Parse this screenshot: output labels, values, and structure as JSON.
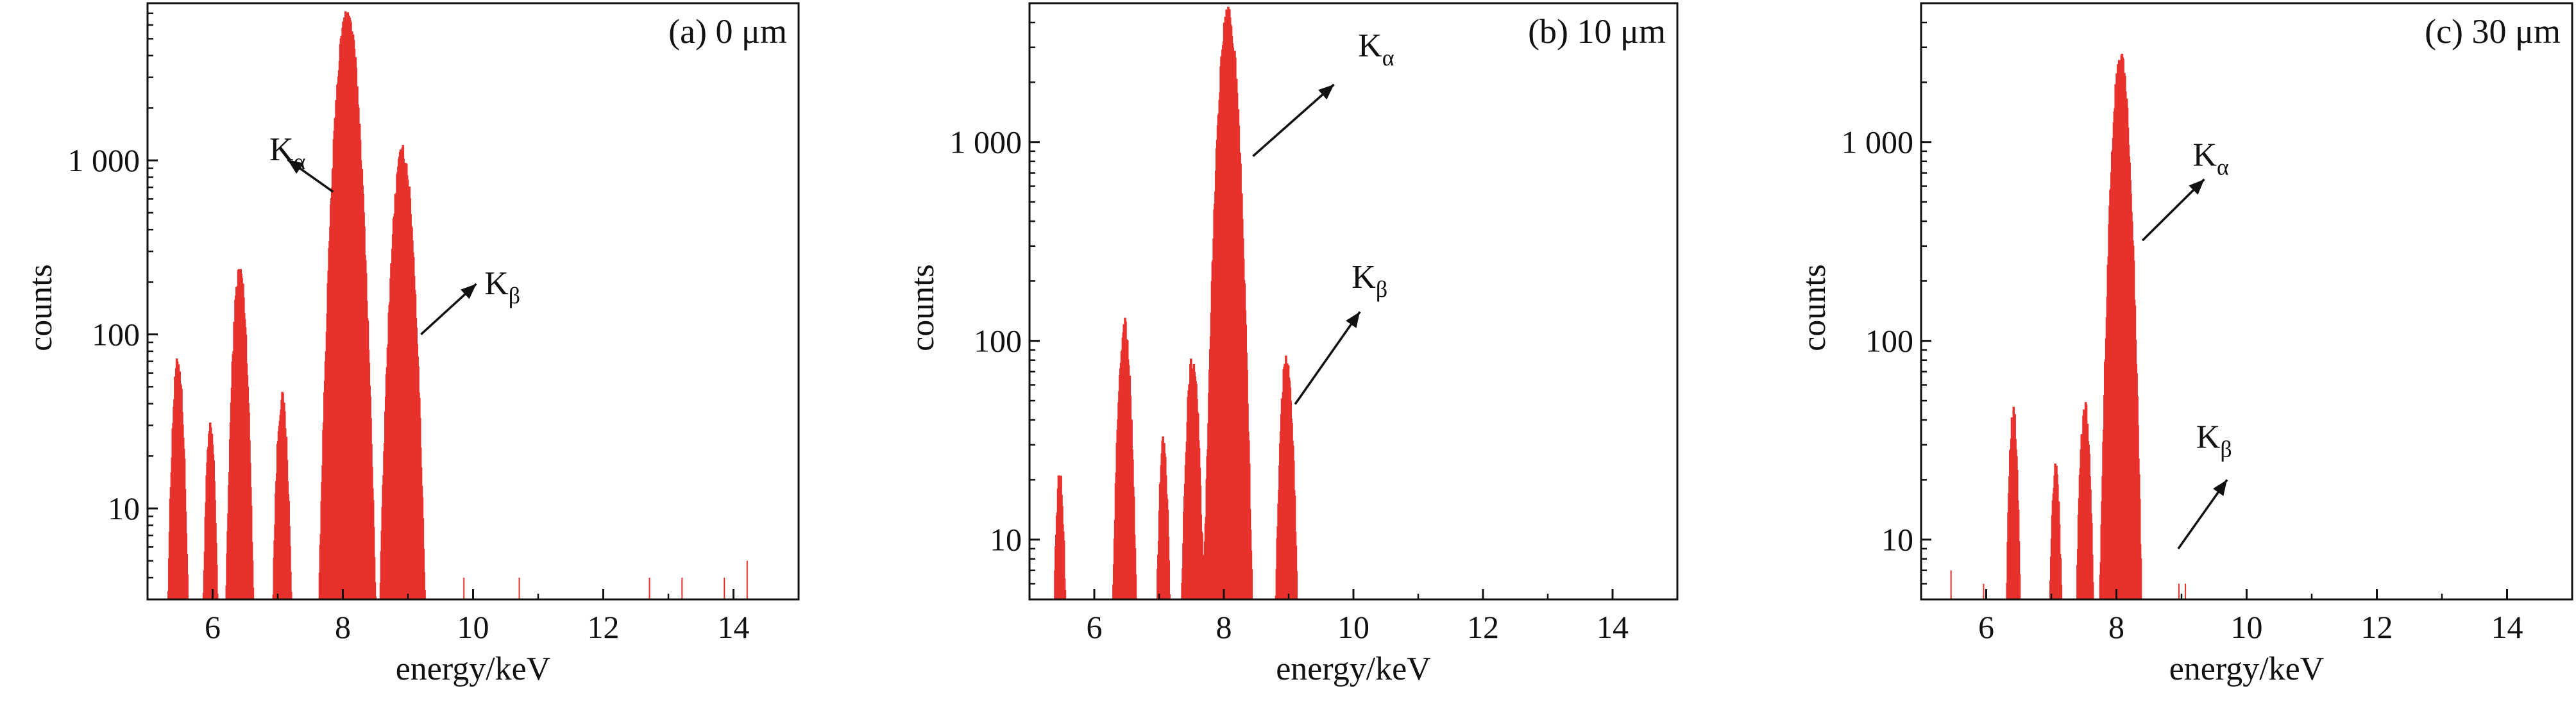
{
  "figure": {
    "accent_color": "#e8302c",
    "axis_color": "#111111"
  },
  "chart_data": [
    {
      "type": "area",
      "panel_label": "(a) 0 μm",
      "xlabel": "energy/keV",
      "ylabel": "counts",
      "y_scale": "log",
      "xlim": [
        5.0,
        15.0
      ],
      "ylim": [
        3,
        8000
      ],
      "x_ticks": [
        6,
        8,
        10,
        12,
        14
      ],
      "y_ticks": [
        10,
        100,
        1000
      ],
      "y_tick_labels": [
        "10",
        "100",
        "1 000"
      ],
      "grid": false,
      "peaks": [
        {
          "x": 5.45,
          "y": 68,
          "width": 0.06
        },
        {
          "x": 5.95,
          "y": 28,
          "width": 0.05
        },
        {
          "x": 6.4,
          "y": 230,
          "width": 0.07
        },
        {
          "x": 7.05,
          "y": 42,
          "width": 0.06
        },
        {
          "x": 8.05,
          "y": 6800,
          "width": 0.11
        },
        {
          "x": 8.9,
          "y": 1100,
          "width": 0.1
        }
      ],
      "baseline": 3,
      "sparse_counts": [
        {
          "x": 9.85,
          "y": 4
        },
        {
          "x": 10.7,
          "y": 4
        },
        {
          "x": 12.7,
          "y": 4
        },
        {
          "x": 13.2,
          "y": 4
        },
        {
          "x": 13.85,
          "y": 4
        },
        {
          "x": 14.2,
          "y": 5
        }
      ],
      "annotations": [
        {
          "symbol": "K",
          "subscript": "α",
          "label_x": 7.15,
          "label_y": 1000,
          "arrow_from": [
            7.85,
            660
          ],
          "arrow_to": [
            7.15,
            1010
          ]
        },
        {
          "symbol": "K",
          "subscript": "β",
          "label_x": 10.45,
          "label_y": 170,
          "arrow_from": [
            9.2,
            100
          ],
          "arrow_to": [
            10.05,
            195
          ]
        }
      ]
    },
    {
      "type": "area",
      "panel_label": "(b) 10 μm",
      "xlabel": "energy/keV",
      "ylabel": "counts",
      "y_scale": "log",
      "xlim": [
        5.0,
        15.0
      ],
      "ylim": [
        5,
        5000
      ],
      "x_ticks": [
        6,
        8,
        10,
        12,
        14
      ],
      "y_ticks": [
        10,
        100,
        1000
      ],
      "y_tick_labels": [
        "10",
        "100",
        "1 000"
      ],
      "grid": false,
      "peaks": [
        {
          "x": 5.45,
          "y": 20,
          "width": 0.05
        },
        {
          "x": 6.45,
          "y": 118,
          "width": 0.07
        },
        {
          "x": 7.05,
          "y": 30,
          "width": 0.05
        },
        {
          "x": 7.5,
          "y": 78,
          "width": 0.07
        },
        {
          "x": 8.05,
          "y": 4300,
          "width": 0.1
        },
        {
          "x": 8.95,
          "y": 80,
          "width": 0.07
        }
      ],
      "baseline": 5,
      "sparse_counts": [],
      "annotations": [
        {
          "symbol": "K",
          "subscript": "α",
          "label_x": 10.35,
          "label_y": 2700,
          "arrow_from": [
            8.45,
            850
          ],
          "arrow_to": [
            9.7,
            1950
          ]
        },
        {
          "symbol": "K",
          "subscript": "β",
          "label_x": 10.25,
          "label_y": 185,
          "arrow_from": [
            9.1,
            48
          ],
          "arrow_to": [
            10.1,
            140
          ]
        }
      ]
    },
    {
      "type": "area",
      "panel_label": "(c) 30 μm",
      "xlabel": "energy/keV",
      "ylabel": "counts",
      "y_scale": "log",
      "xlim": [
        5.0,
        15.0
      ],
      "ylim": [
        5,
        5000
      ],
      "x_ticks": [
        6,
        8,
        10,
        12,
        14
      ],
      "y_ticks": [
        10,
        100,
        1000
      ],
      "y_tick_labels": [
        "10",
        "100",
        "1 000"
      ],
      "grid": false,
      "peaks": [
        {
          "x": 6.4,
          "y": 42,
          "width": 0.05
        },
        {
          "x": 7.05,
          "y": 22,
          "width": 0.05
        },
        {
          "x": 7.5,
          "y": 45,
          "width": 0.06
        },
        {
          "x": 8.05,
          "y": 2600,
          "width": 0.09
        }
      ],
      "baseline": 5,
      "sparse_counts": [
        {
          "x": 5.45,
          "y": 7
        },
        {
          "x": 5.95,
          "y": 6
        },
        {
          "x": 8.95,
          "y": 6
        },
        {
          "x": 9.05,
          "y": 6
        }
      ],
      "annotations": [
        {
          "symbol": "K",
          "subscript": "α",
          "label_x": 9.45,
          "label_y": 760,
          "arrow_from": [
            8.4,
            320
          ],
          "arrow_to": [
            9.35,
            650
          ]
        },
        {
          "symbol": "K",
          "subscript": "β",
          "label_x": 9.5,
          "label_y": 29,
          "arrow_from": [
            8.95,
            9
          ],
          "arrow_to": [
            9.7,
            20
          ]
        }
      ]
    }
  ]
}
